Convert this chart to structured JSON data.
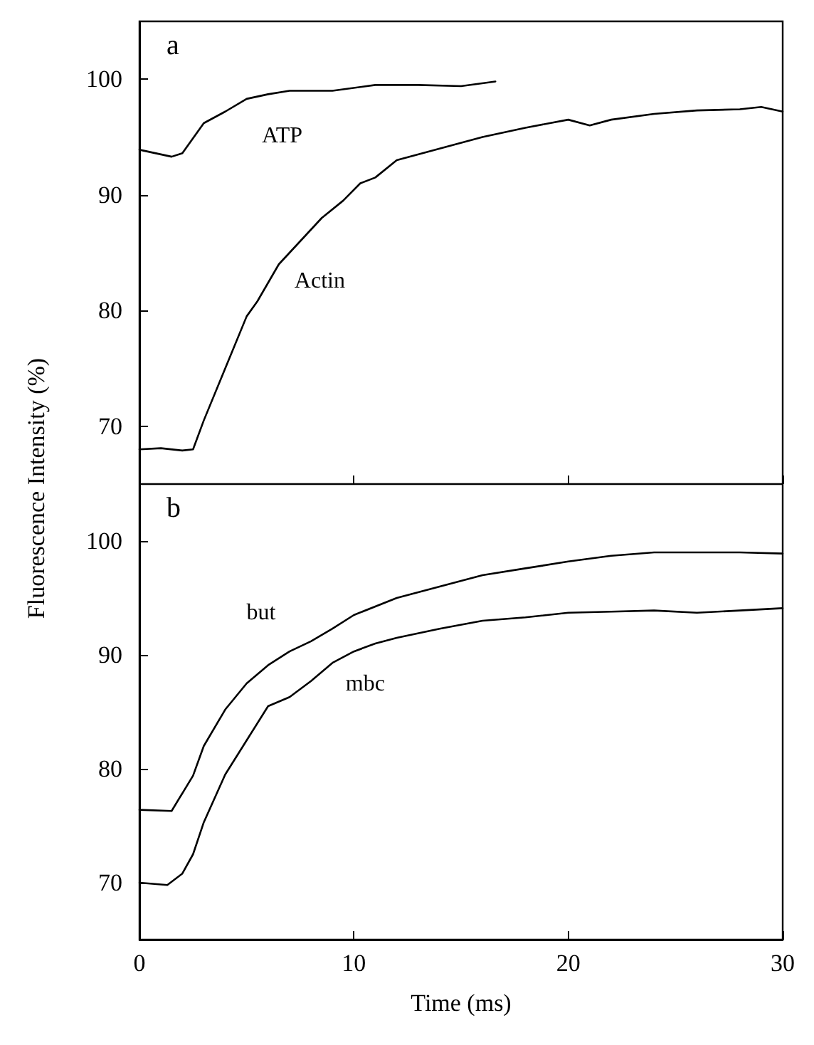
{
  "chart_data": [
    {
      "type": "line",
      "ylabel": "Fluorescence Intensity (%)",
      "annotations": [
        "a"
      ],
      "xlim": [
        0,
        30
      ],
      "xticks": [
        0,
        10,
        20,
        30
      ],
      "ylim": [
        65,
        105
      ],
      "yticks": [
        70,
        80,
        90,
        100
      ],
      "tick_labels": "y",
      "grid": false,
      "legend": false,
      "marker": "none",
      "line_style": "solid",
      "series": [
        {
          "name": "ATP",
          "color": "#000000",
          "x": [
            0,
            1.5,
            2,
            3,
            4,
            5,
            6,
            7,
            9,
            11,
            13,
            15,
            16.6
          ],
          "values": [
            93.9,
            93.3,
            93.6,
            96.2,
            97.2,
            98.3,
            98.7,
            99,
            99,
            99.5,
            99.5,
            99.4,
            99.8
          ]
        },
        {
          "name": "Actin",
          "color": "#000000",
          "x": [
            0,
            1,
            2,
            2.5,
            3,
            4,
            5,
            5.5,
            6.5,
            7.5,
            8.5,
            9.5,
            10.3,
            11,
            12,
            14,
            16,
            18,
            20,
            21,
            22,
            24,
            26,
            28,
            29,
            30
          ],
          "values": [
            68,
            68.1,
            67.9,
            68,
            70.5,
            75,
            79.5,
            80.8,
            84,
            86,
            88,
            89.5,
            91,
            91.5,
            93,
            94,
            95,
            95.8,
            96.5,
            96,
            96.5,
            97,
            97.3,
            97.4,
            97.6,
            97.2
          ]
        }
      ]
    },
    {
      "type": "line",
      "xlabel": "Time (ms)",
      "annotations": [
        "b"
      ],
      "xlim": [
        0,
        30
      ],
      "xticks": [
        0,
        10,
        20,
        30
      ],
      "ylim": [
        65,
        105
      ],
      "yticks": [
        70,
        80,
        90,
        100
      ],
      "grid": false,
      "legend": false,
      "marker": "none",
      "line_style": "solid",
      "series": [
        {
          "name": "but",
          "color": "#000000",
          "x": [
            0,
            1.5,
            2.5,
            3,
            4,
            5,
            6,
            7,
            8,
            9,
            10,
            12,
            14,
            16,
            18,
            20,
            22,
            24,
            26,
            28,
            30
          ],
          "values": [
            76.4,
            76.3,
            79.4,
            82,
            85.2,
            87.5,
            89.1,
            90.3,
            91.2,
            92.3,
            93.5,
            95,
            96,
            97,
            97.6,
            98.2,
            98.7,
            99,
            99,
            99,
            98.9
          ]
        },
        {
          "name": "mbc",
          "color": "#000000",
          "x": [
            0,
            1.3,
            2,
            2.5,
            3,
            4,
            5,
            6,
            7,
            8,
            9,
            10,
            11,
            12,
            14,
            16,
            18,
            20,
            22,
            24,
            26,
            28,
            30
          ],
          "values": [
            70,
            69.8,
            70.8,
            72.5,
            75.3,
            79.5,
            82.5,
            85.5,
            86.3,
            87.7,
            89.3,
            90.3,
            91,
            91.5,
            92.3,
            93,
            93.3,
            93.7,
            93.8,
            93.9,
            93.7,
            93.9,
            94.1
          ]
        }
      ]
    }
  ]
}
